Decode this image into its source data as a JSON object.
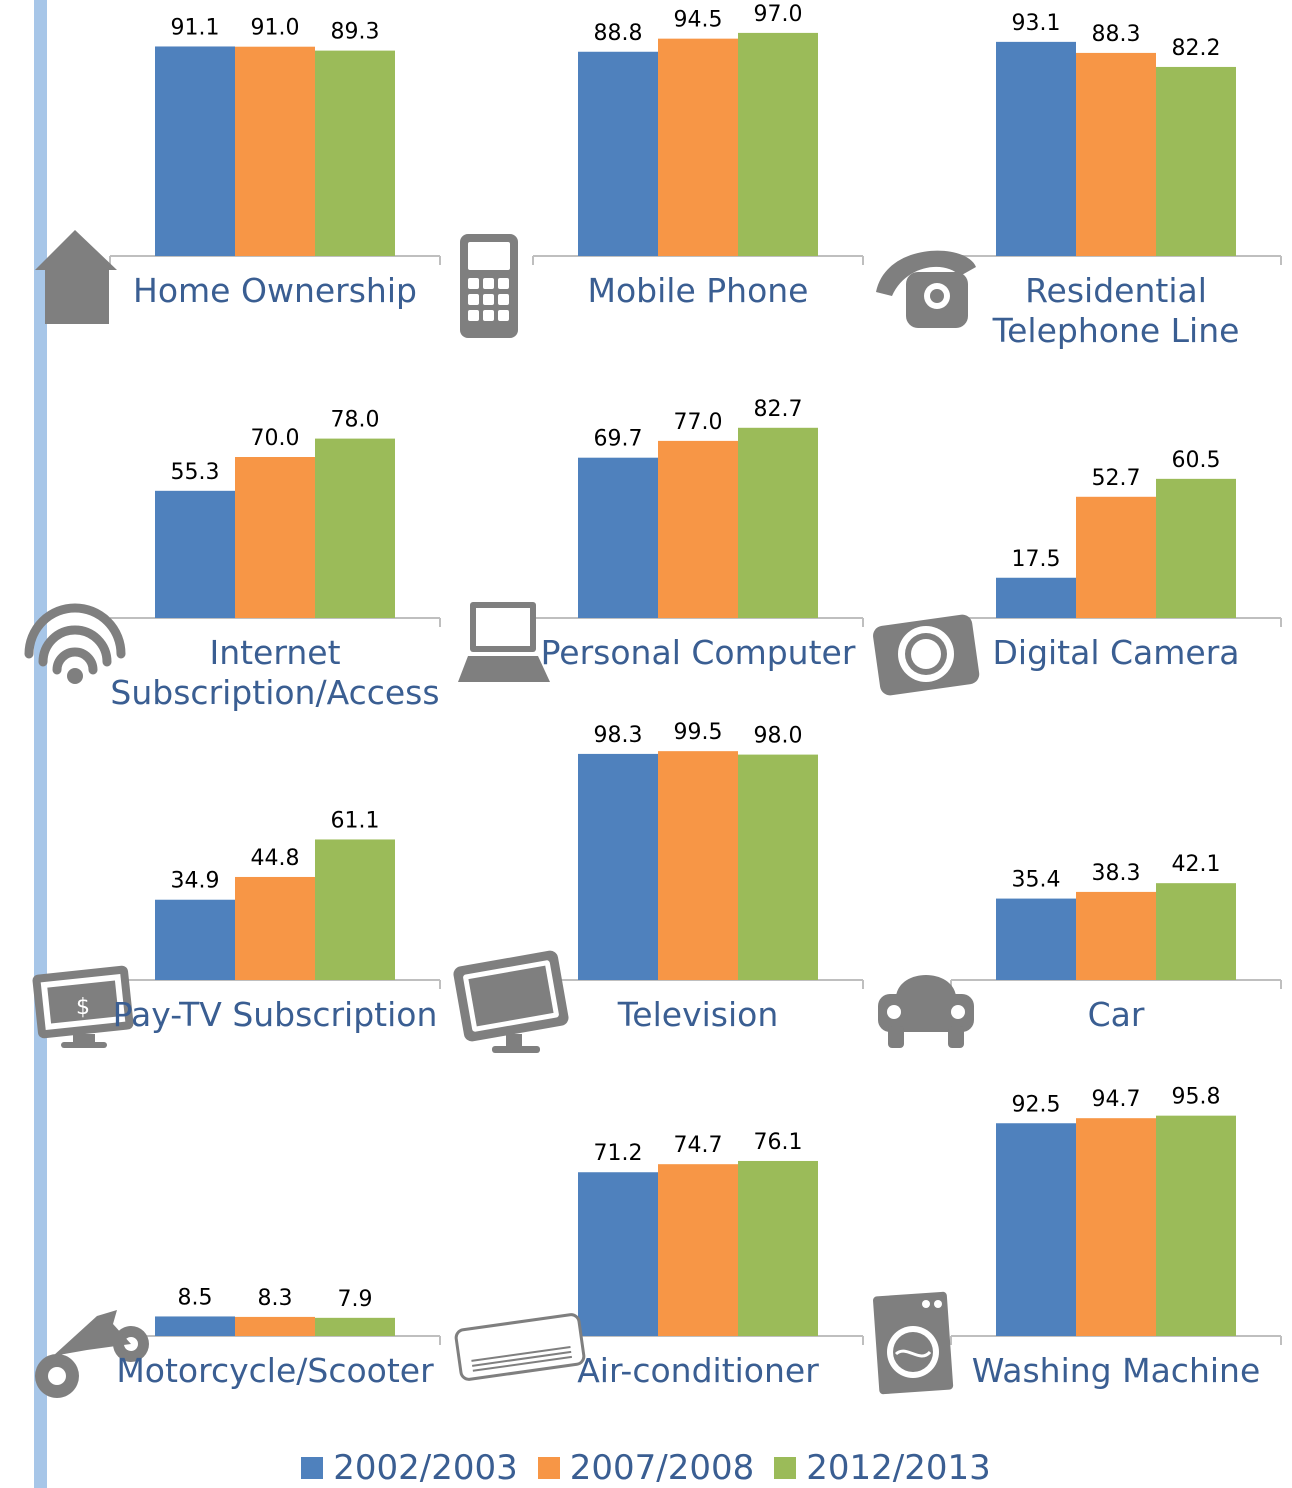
{
  "colors": {
    "series": [
      "#4f81bd",
      "#f79646",
      "#9bbb59"
    ],
    "label": "#3a5e92",
    "icon": "#7f7f7f",
    "axis": "#bfbfbf",
    "accent_bar": "#a7c6e8"
  },
  "legend": [
    {
      "label": "2002/2003",
      "color": "#4f81bd"
    },
    {
      "label": "2007/2008",
      "color": "#f79646"
    },
    {
      "label": "2012/2013",
      "color": "#9bbb59"
    }
  ],
  "chart_data": [
    {
      "type": "bar",
      "title": "Home Ownership",
      "icon": "house-icon",
      "series": [
        {
          "name": "2002/2003",
          "values": [
            91.1
          ]
        },
        {
          "name": "2007/2008",
          "values": [
            91.0
          ]
        },
        {
          "name": "2012/2013",
          "values": [
            89.3
          ]
        }
      ]
    },
    {
      "type": "bar",
      "title": "Mobile Phone",
      "icon": "mobile-phone-icon",
      "series": [
        {
          "name": "2002/2003",
          "values": [
            88.8
          ]
        },
        {
          "name": "2007/2008",
          "values": [
            94.5
          ]
        },
        {
          "name": "2012/2013",
          "values": [
            97.0
          ]
        }
      ]
    },
    {
      "type": "bar",
      "title": "Residential Telephone Line",
      "icon": "telephone-icon",
      "series": [
        {
          "name": "2002/2003",
          "values": [
            93.1
          ]
        },
        {
          "name": "2007/2008",
          "values": [
            88.3
          ]
        },
        {
          "name": "2012/2013",
          "values": [
            82.2
          ]
        }
      ]
    },
    {
      "type": "bar",
      "title": "Internet Subscription/Access",
      "icon": "wifi-icon",
      "series": [
        {
          "name": "2002/2003",
          "values": [
            55.3
          ]
        },
        {
          "name": "2007/2008",
          "values": [
            70.0
          ]
        },
        {
          "name": "2012/2013",
          "values": [
            78.0
          ]
        }
      ]
    },
    {
      "type": "bar",
      "title": "Personal Computer",
      "icon": "laptop-icon",
      "series": [
        {
          "name": "2002/2003",
          "values": [
            69.7
          ]
        },
        {
          "name": "2007/2008",
          "values": [
            77.0
          ]
        },
        {
          "name": "2012/2013",
          "values": [
            82.7
          ]
        }
      ]
    },
    {
      "type": "bar",
      "title": "Digital Camera",
      "icon": "camera-icon",
      "series": [
        {
          "name": "2002/2003",
          "values": [
            17.5
          ]
        },
        {
          "name": "2007/2008",
          "values": [
            52.7
          ]
        },
        {
          "name": "2012/2013",
          "values": [
            60.5
          ]
        }
      ]
    },
    {
      "type": "bar",
      "title": "Pay-TV Subscription",
      "icon": "pay-tv-icon",
      "series": [
        {
          "name": "2002/2003",
          "values": [
            34.9
          ]
        },
        {
          "name": "2007/2008",
          "values": [
            44.8
          ]
        },
        {
          "name": "2012/2013",
          "values": [
            61.1
          ]
        }
      ]
    },
    {
      "type": "bar",
      "title": "Television",
      "icon": "television-icon",
      "series": [
        {
          "name": "2002/2003",
          "values": [
            98.3
          ]
        },
        {
          "name": "2007/2008",
          "values": [
            99.5
          ]
        },
        {
          "name": "2012/2013",
          "values": [
            98.0
          ]
        }
      ]
    },
    {
      "type": "bar",
      "title": "Car",
      "icon": "car-icon",
      "series": [
        {
          "name": "2002/2003",
          "values": [
            35.4
          ]
        },
        {
          "name": "2007/2008",
          "values": [
            38.3
          ]
        },
        {
          "name": "2012/2013",
          "values": [
            42.1
          ]
        }
      ]
    },
    {
      "type": "bar",
      "title": "Motorcycle/Scooter",
      "icon": "motorcycle-icon",
      "series": [
        {
          "name": "2002/2003",
          "values": [
            8.5
          ]
        },
        {
          "name": "2007/2008",
          "values": [
            8.3
          ]
        },
        {
          "name": "2012/2013",
          "values": [
            7.9
          ]
        }
      ]
    },
    {
      "type": "bar",
      "title": "Air-conditioner",
      "icon": "air-conditioner-icon",
      "series": [
        {
          "name": "2002/2003",
          "values": [
            71.2
          ]
        },
        {
          "name": "2007/2008",
          "values": [
            74.7
          ]
        },
        {
          "name": "2012/2013",
          "values": [
            76.1
          ]
        }
      ]
    },
    {
      "type": "bar",
      "title": "Washing Machine",
      "icon": "washing-machine-icon",
      "series": [
        {
          "name": "2002/2003",
          "values": [
            92.5
          ]
        },
        {
          "name": "2007/2008",
          "values": [
            94.7
          ]
        },
        {
          "name": "2012/2013",
          "values": [
            95.8
          ]
        }
      ]
    }
  ]
}
